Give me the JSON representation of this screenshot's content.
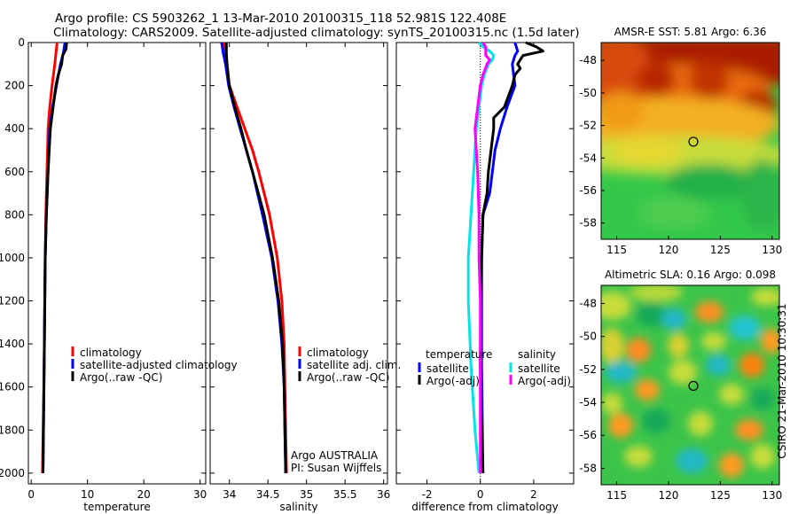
{
  "header": {
    "line1": "Argo profile: CS 5903262_1 13-Mar-2010 20100315_118 52.981S 122.408E",
    "line2": "Climatology: CARS2009. Satellite-adjusted climatology: synTS_20100315.nc (1.5d later)"
  },
  "side_credit": "CSIRO 21-Mar-2010 10:30:31",
  "colors": {
    "climatology": "#ff0000",
    "satellite": "#0000ff",
    "argo": "#000000",
    "satellite_salinity": "#00e5e5",
    "argo_salinity": "#ff00ff"
  },
  "chart_data": [
    {
      "id": "temperature",
      "type": "line",
      "xlabel": "temperature",
      "xlim": [
        -0.5,
        31
      ],
      "xticks": [
        0,
        10,
        20,
        30
      ],
      "xtick_labels": [
        "0",
        "10",
        "20",
        "30"
      ],
      "ylim": [
        2050,
        0
      ],
      "yticks": [
        0,
        200,
        400,
        600,
        800,
        1000,
        1200,
        1400,
        1600,
        1800,
        2000
      ],
      "ytick_labels": [
        "0",
        "200",
        "400",
        "600",
        "800",
        "1000",
        "1200",
        "1400",
        "1600",
        "1800",
        "2000"
      ],
      "legend": [
        "climatology",
        "satellite-adjusted climatology",
        "Argo(..raw -QC)"
      ],
      "series": [
        {
          "name": "climatology",
          "color": "#ff0000",
          "y": [
            0,
            50,
            100,
            200,
            300,
            400,
            600,
            800,
            1000,
            1500,
            2000
          ],
          "x": [
            4.6,
            4.4,
            4.2,
            3.7,
            3.3,
            3.0,
            2.8,
            2.6,
            2.5,
            2.3,
            2.0
          ]
        },
        {
          "name": "satellite-adjusted climatology",
          "color": "#0000ff",
          "y": [
            0,
            50,
            100,
            200,
            300,
            400,
            600,
            800,
            1000,
            1500,
            2000
          ],
          "x": [
            6.0,
            5.7,
            5.2,
            4.5,
            3.8,
            3.3,
            3.0,
            2.7,
            2.5,
            2.3,
            2.1
          ]
        },
        {
          "name": "Argo(..raw -QC)",
          "color": "#000000",
          "y": [
            0,
            30,
            60,
            100,
            150,
            200,
            300,
            400,
            600,
            800,
            1000,
            1500,
            2000
          ],
          "x": [
            6.3,
            6.2,
            5.6,
            5.4,
            4.8,
            4.4,
            3.9,
            3.4,
            3.0,
            2.7,
            2.5,
            2.3,
            2.1
          ]
        }
      ]
    },
    {
      "id": "salinity",
      "type": "line",
      "xlabel": "salinity",
      "xlim": [
        33.75,
        36.05
      ],
      "xticks": [
        34,
        34.5,
        35,
        35.5,
        36
      ],
      "xtick_labels": [
        "34",
        "34.5",
        "35",
        "35.5",
        "36"
      ],
      "ylim": [
        2050,
        0
      ],
      "legend": [
        "climatology",
        "satellite adj. clim.",
        "Argo(..raw -QC)"
      ],
      "annotation": [
        "Argo AUSTRALIA",
        "PI: Susan Wijffels"
      ],
      "series": [
        {
          "name": "climatology",
          "color": "#ff0000",
          "y": [
            0,
            50,
            100,
            200,
            300,
            400,
            500,
            600,
            800,
            1000,
            1200,
            1400,
            1600,
            1800,
            2000
          ],
          "x": [
            33.93,
            33.93,
            33.95,
            34.0,
            34.1,
            34.2,
            34.3,
            34.38,
            34.52,
            34.62,
            34.68,
            34.71,
            34.72,
            34.73,
            34.74
          ]
        },
        {
          "name": "satellite adj. clim.",
          "color": "#0000ff",
          "y": [
            0,
            50,
            100,
            200,
            300,
            400,
            500,
            600,
            800,
            1000,
            1200,
            1400,
            1600,
            1800,
            2000
          ],
          "x": [
            33.9,
            33.92,
            33.95,
            33.99,
            34.06,
            34.14,
            34.22,
            34.3,
            34.43,
            34.55,
            34.63,
            34.68,
            34.71,
            34.72,
            34.73
          ]
        },
        {
          "name": "Argo(..raw -QC)",
          "color": "#000000",
          "y": [
            0,
            50,
            100,
            200,
            300,
            400,
            500,
            600,
            800,
            1000,
            1200,
            1400,
            1600,
            1800,
            2000
          ],
          "x": [
            33.96,
            33.96,
            33.97,
            34.0,
            34.07,
            34.15,
            34.22,
            34.3,
            34.45,
            34.56,
            34.64,
            34.69,
            34.71,
            34.72,
            34.73
          ]
        }
      ]
    },
    {
      "id": "difference",
      "type": "line",
      "xlabel": "difference from climatology",
      "xlim": [
        -3.15,
        3.5
      ],
      "xticks": [
        -2,
        0,
        2
      ],
      "xtick_labels": [
        "-2",
        "0",
        "2"
      ],
      "ylim": [
        2050,
        0
      ],
      "zero_line": true,
      "legend_headers": [
        "temperature",
        "salinity"
      ],
      "legend_temperature": [
        "satellite",
        "Argo(-adj)"
      ],
      "legend_salinity": [
        "satellite",
        "Argo(-adj)"
      ],
      "series": [
        {
          "name": "temperature satellite",
          "color": "#0000ff",
          "y": [
            0,
            20,
            40,
            60,
            80,
            100,
            150,
            200,
            300,
            400,
            500,
            600,
            700,
            800,
            1000,
            1500,
            2000
          ],
          "x": [
            1.3,
            1.35,
            1.4,
            1.3,
            1.25,
            1.2,
            1.25,
            1.3,
            1.0,
            0.75,
            0.55,
            0.45,
            0.35,
            0.1,
            0.05,
            0.05,
            0.1
          ]
        },
        {
          "name": "temperature Argo(-adj)",
          "color": "#000000",
          "y": [
            0,
            20,
            40,
            60,
            80,
            100,
            120,
            150,
            200,
            300,
            350,
            400,
            500,
            600,
            700,
            800,
            1000,
            1500,
            2000
          ],
          "x": [
            1.7,
            2.1,
            2.35,
            1.6,
            1.5,
            1.4,
            1.5,
            1.3,
            1.2,
            0.9,
            0.5,
            0.5,
            0.4,
            0.3,
            0.25,
            0.1,
            0.05,
            0.0,
            0.1
          ]
        },
        {
          "name": "salinity satellite",
          "color": "#00e5e5",
          "y": [
            0,
            20,
            40,
            60,
            80,
            100,
            150,
            200,
            300,
            400,
            600,
            800,
            1000,
            1200,
            1500,
            1800,
            2000
          ],
          "x": [
            -0.05,
            0.1,
            0.35,
            0.5,
            0.45,
            0.3,
            0.15,
            0.05,
            -0.05,
            -0.15,
            -0.25,
            -0.35,
            -0.45,
            -0.45,
            -0.35,
            -0.2,
            -0.05
          ]
        },
        {
          "name": "salinity Argo(-adj)",
          "color": "#ff00ff",
          "y": [
            0,
            20,
            40,
            60,
            80,
            100,
            150,
            200,
            300,
            400,
            500,
            600,
            800,
            1000,
            1200,
            1500,
            2000
          ],
          "x": [
            0.1,
            0.2,
            0.2,
            0.2,
            0.35,
            0.25,
            0.1,
            0.0,
            -0.1,
            -0.2,
            -0.15,
            -0.1,
            -0.05,
            -0.05,
            0.0,
            0.0,
            0.0
          ]
        }
      ]
    },
    {
      "id": "sst_map",
      "type": "heatmap",
      "title": "AMSR-E SST: 5.81 Argo: 6.36",
      "xticks": [
        115,
        120,
        125,
        130
      ],
      "yticks": [
        -48,
        -50,
        -52,
        -54,
        -56,
        -58
      ],
      "xlim": [
        113.5,
        130.7
      ],
      "ylim": [
        -59,
        -46.9
      ],
      "marker": {
        "lon": 122.4,
        "lat": -53.0
      }
    },
    {
      "id": "sla_map",
      "type": "heatmap",
      "title": "Altimetric SLA: 0.16 Argo: 0.098",
      "xticks": [
        115,
        120,
        125,
        130
      ],
      "yticks": [
        -48,
        -50,
        -52,
        -54,
        -56,
        -58
      ],
      "xlim": [
        113.5,
        130.7
      ],
      "ylim": [
        -59,
        -46.9
      ],
      "marker": {
        "lon": 122.4,
        "lat": -53.0
      }
    }
  ]
}
